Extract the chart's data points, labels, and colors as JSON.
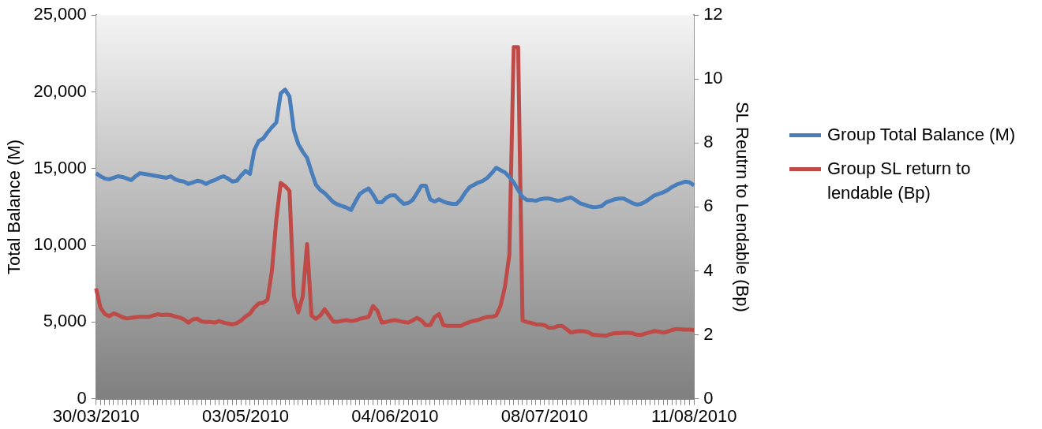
{
  "chart_data": {
    "type": "line",
    "xlabel": null,
    "ylabel": "Total Balance (M)",
    "y2label": "SL Reutrn to Lendable (Bp)",
    "categories": [
      "30/03/2010",
      null,
      null,
      null,
      null,
      null,
      null,
      null,
      null,
      null,
      null,
      null,
      null,
      null,
      null,
      null,
      null,
      null,
      null,
      null,
      null,
      null,
      null,
      null,
      null,
      null,
      null,
      null,
      null,
      null,
      null,
      null,
      null,
      null,
      "03/05/2010",
      null,
      null,
      null,
      null,
      null,
      null,
      null,
      null,
      null,
      null,
      null,
      null,
      null,
      null,
      null,
      null,
      null,
      null,
      null,
      null,
      null,
      null,
      null,
      null,
      null,
      null,
      null,
      null,
      null,
      null,
      null,
      null,
      null,
      "04/06/2010",
      null,
      null,
      null,
      null,
      null,
      null,
      null,
      null,
      null,
      null,
      null,
      null,
      null,
      null,
      null,
      null,
      null,
      null,
      null,
      null,
      null,
      null,
      null,
      null,
      null,
      null,
      null,
      null,
      null,
      null,
      null,
      null,
      null,
      "08/07/2010",
      null,
      null,
      null,
      null,
      null,
      null,
      null,
      null,
      null,
      null,
      null,
      null,
      null,
      null,
      null,
      null,
      null,
      null,
      null,
      null,
      null,
      null,
      null,
      null,
      null,
      null,
      null,
      null,
      null,
      null,
      null,
      null,
      null,
      "11/08/2010"
    ],
    "series": [
      {
        "name": "Group Total Balance (M)",
        "color": "#4a7ebb",
        "values": [
          14700,
          14500,
          14350,
          14300,
          14400,
          14500,
          14450,
          14350,
          14250,
          14500,
          14700,
          14650,
          14600,
          14550,
          14500,
          14450,
          14400,
          14500,
          14300,
          14200,
          14150,
          14000,
          14100,
          14200,
          14150,
          14000,
          14150,
          14250,
          14400,
          14500,
          14350,
          14150,
          14200,
          14550,
          14850,
          14650,
          16200,
          16800,
          16950,
          17350,
          17700,
          18000,
          19900,
          20150,
          19700,
          17500,
          16600,
          16100,
          15700,
          14800,
          13950,
          13600,
          13400,
          13100,
          12800,
          12650,
          12550,
          12450,
          12300,
          12850,
          13350,
          13550,
          13700,
          13300,
          12800,
          12800,
          13100,
          13250,
          13250,
          12950,
          12700,
          12750,
          12950,
          13400,
          13880,
          13880,
          13000,
          12850,
          13000,
          12850,
          12750,
          12700,
          12700,
          13000,
          13450,
          13800,
          13950,
          14100,
          14200,
          14400,
          14700,
          15050,
          14900,
          14750,
          14450,
          14100,
          13600,
          13150,
          12950,
          12950,
          12900,
          13000,
          13050,
          13050,
          12980,
          12900,
          12950,
          13050,
          13120,
          12950,
          12750,
          12650,
          12550,
          12480,
          12500,
          12550,
          12800,
          12900,
          13000,
          13050,
          13050,
          12900,
          12750,
          12650,
          12700,
          12850,
          13050,
          13250,
          13350,
          13450,
          13600,
          13800,
          13950,
          14050,
          14150,
          14100,
          13900
        ]
      },
      {
        "name": "Group SL return to lendable (Bp)",
        "color": "#be4b48",
        "axis": "y2",
        "values": [
          3.45,
          2.85,
          2.65,
          2.58,
          2.67,
          2.62,
          2.55,
          2.51,
          2.53,
          2.55,
          2.56,
          2.56,
          2.56,
          2.6,
          2.64,
          2.62,
          2.63,
          2.62,
          2.57,
          2.54,
          2.48,
          2.38,
          2.48,
          2.5,
          2.42,
          2.4,
          2.4,
          2.38,
          2.43,
          2.38,
          2.35,
          2.33,
          2.36,
          2.45,
          2.57,
          2.66,
          2.85,
          2.98,
          3.0,
          3.1,
          4.0,
          5.6,
          6.75,
          6.65,
          6.5,
          3.21,
          2.7,
          3.2,
          4.84,
          2.6,
          2.5,
          2.6,
          2.8,
          2.6,
          2.41,
          2.41,
          2.44,
          2.46,
          2.43,
          2.45,
          2.5,
          2.53,
          2.56,
          2.9,
          2.75,
          2.38,
          2.4,
          2.44,
          2.46,
          2.43,
          2.4,
          2.38,
          2.45,
          2.53,
          2.45,
          2.3,
          2.3,
          2.55,
          2.65,
          2.3,
          2.28,
          2.28,
          2.28,
          2.28,
          2.35,
          2.4,
          2.44,
          2.47,
          2.52,
          2.56,
          2.56,
          2.6,
          2.9,
          3.5,
          4.5,
          11.0,
          11.0,
          2.45,
          2.4,
          2.37,
          2.33,
          2.32,
          2.3,
          2.22,
          2.22,
          2.27,
          2.28,
          2.18,
          2.07,
          2.1,
          2.12,
          2.11,
          2.08,
          2.0,
          1.99,
          1.98,
          1.97,
          2.02,
          2.05,
          2.05,
          2.06,
          2.06,
          2.05,
          2.0,
          2.0,
          2.04,
          2.08,
          2.12,
          2.1,
          2.07,
          2.1,
          2.15,
          2.18,
          2.17,
          2.16,
          2.16,
          2.15
        ]
      }
    ],
    "ylim": [
      0,
      25000
    ],
    "yticks": [
      {
        "value": 0,
        "label": "0"
      },
      {
        "value": 5000,
        "label": "5,000"
      },
      {
        "value": 10000,
        "label": "10,000"
      },
      {
        "value": 15000,
        "label": "15,000"
      },
      {
        "value": 20000,
        "label": "20,000"
      },
      {
        "value": 25000,
        "label": "25,000"
      }
    ],
    "y2lim": [
      0,
      12
    ],
    "y2ticks": [
      0,
      2,
      4,
      6,
      8,
      10,
      12
    ],
    "legend": "right",
    "marker": "none",
    "line_style": "solid"
  }
}
